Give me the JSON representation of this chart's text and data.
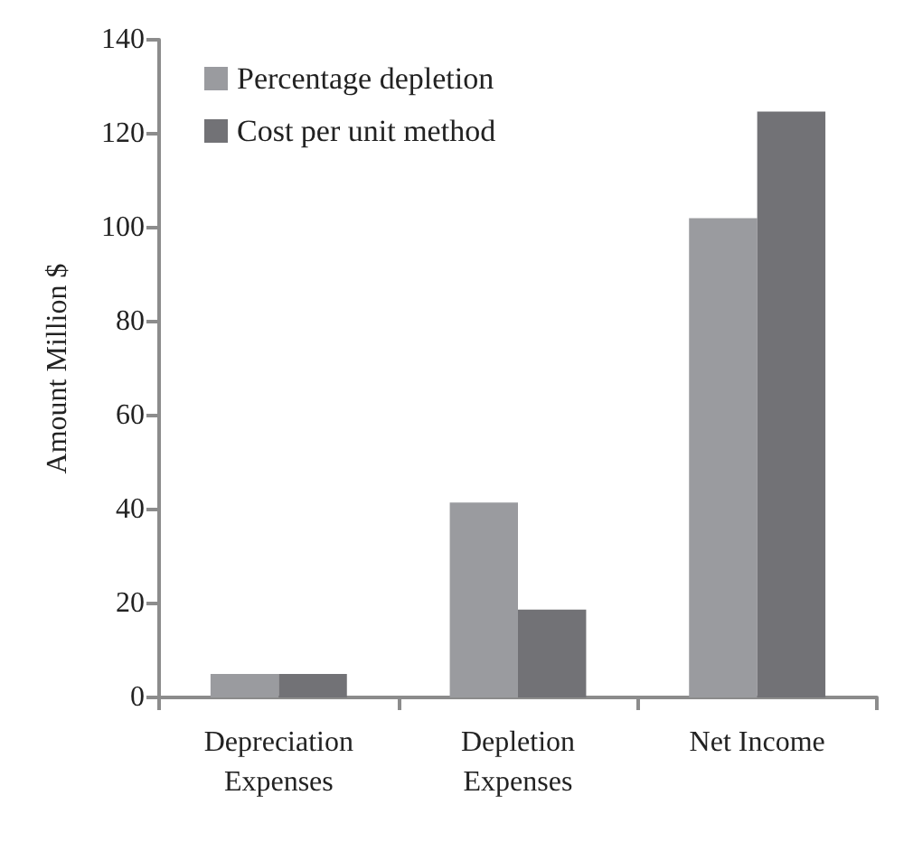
{
  "chart_data": {
    "type": "bar",
    "ylabel": "Amount Million $",
    "categories": [
      "Depreciation\nExpenses",
      "Depletion\nExpenses",
      "Net Income"
    ],
    "series": [
      {
        "name": "Percentage depletion",
        "color": "#9a9b9f",
        "values": [
          5,
          41.5,
          102
        ]
      },
      {
        "name": "Cost per unit method",
        "color": "#727276",
        "values": [
          5,
          18.7,
          124.7
        ]
      }
    ],
    "ylim": [
      0,
      140
    ],
    "yticks": [
      0,
      20,
      40,
      60,
      80,
      100,
      120,
      140
    ],
    "grid": false,
    "legend": "top left"
  }
}
